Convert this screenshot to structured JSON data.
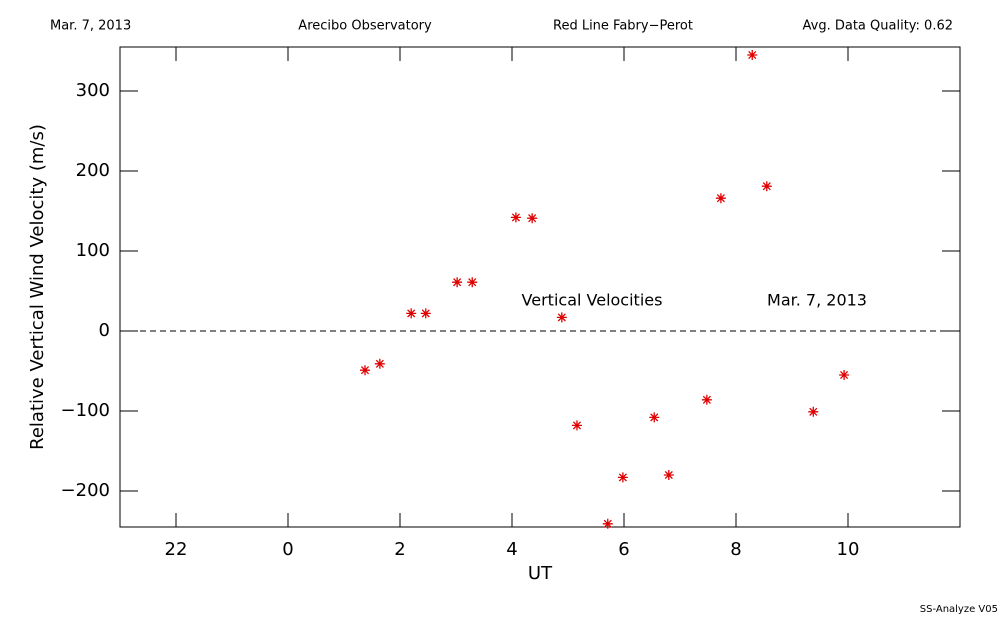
{
  "chart_data": {
    "type": "scatter",
    "header": [
      "Mar. 7, 2013",
      "Arecibo Observatory",
      "Red Line Fabry−Perot",
      "Avg. Data Quality: 0.62"
    ],
    "annotations": [
      "Vertical Velocities",
      "Mar. 7, 2013"
    ],
    "footer": "SS-Analyze V05",
    "xlabel": "UT",
    "ylabel": "Relative Vertical Wind Velocity (m/s)",
    "color": "#e00000",
    "reference_line": 0,
    "x": [
      1.375,
      1.64,
      2.2,
      2.46,
      3.02,
      3.29,
      4.07,
      4.36,
      4.89,
      5.16,
      5.71,
      5.98,
      6.54,
      6.8,
      7.48,
      7.73,
      8.29,
      8.55,
      9.38,
      9.93
    ],
    "values": [
      -49,
      -41,
      22,
      22,
      61,
      61,
      142,
      141,
      17,
      -118,
      -241,
      -183,
      -108,
      -180,
      -86,
      166,
      345,
      181,
      -101,
      -55
    ],
    "xlim": [
      -3,
      12
    ],
    "ylim": [
      -245,
      355
    ],
    "xticks": [
      {
        "value": -2,
        "label": "22"
      },
      0,
      2,
      4,
      6,
      8,
      10
    ],
    "yticks": [
      {
        "value": -200,
        "label": "−200"
      },
      {
        "value": -100,
        "label": "−100"
      },
      0,
      100,
      200,
      300
    ]
  }
}
